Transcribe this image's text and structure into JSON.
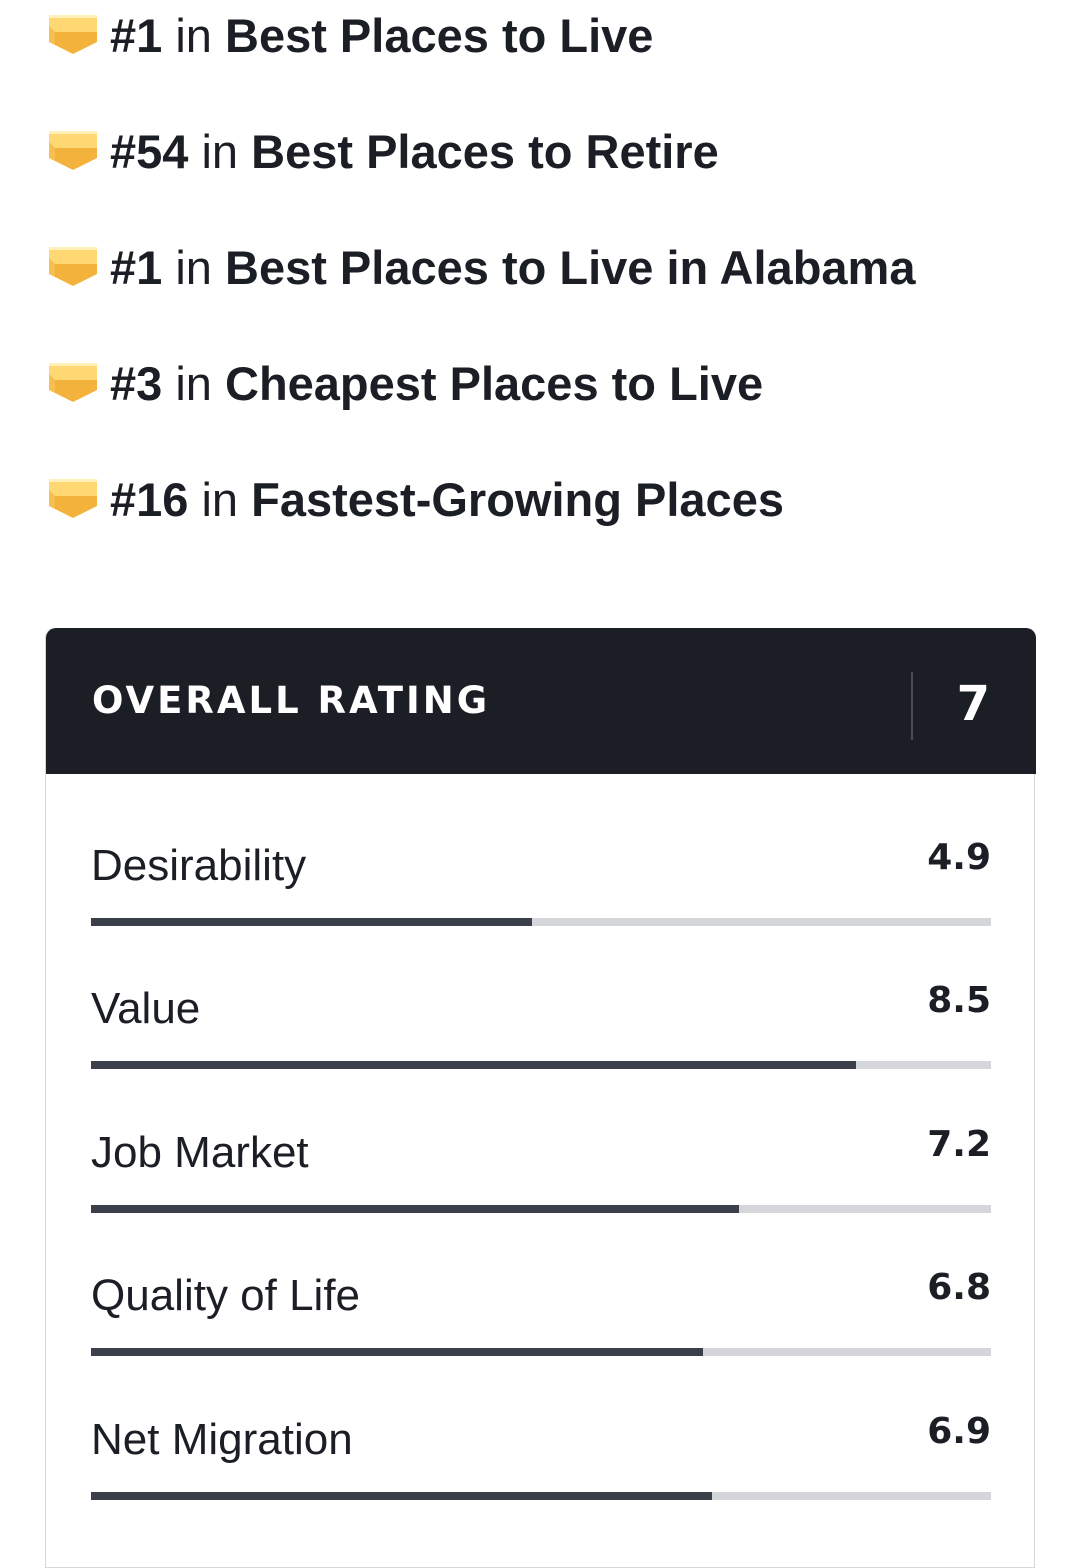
{
  "rankings": [
    {
      "rank": "#1",
      "connector": "in",
      "list": "Best Places to Live",
      "icon": "badge-icon"
    },
    {
      "rank": "#54",
      "connector": "in",
      "list": "Best Places to Retire",
      "icon": "badge-icon"
    },
    {
      "rank": "#1",
      "connector": "in",
      "list": "Best Places to Live in Alabama",
      "icon": "badge-icon"
    },
    {
      "rank": "#3",
      "connector": "in",
      "list": "Cheapest Places to Live",
      "icon": "badge-icon"
    },
    {
      "rank": "#16",
      "connector": "in",
      "list": "Fastest-Growing Places",
      "icon": "badge-icon"
    }
  ],
  "rating": {
    "title": "OVERALL RATING",
    "score": "7",
    "max_score": 10,
    "metrics": [
      {
        "label": "Desirability",
        "value": "4.9",
        "fraction": 0.49
      },
      {
        "label": "Value",
        "value": "8.5",
        "fraction": 0.85
      },
      {
        "label": "Job Market",
        "value": "7.2",
        "fraction": 0.72
      },
      {
        "label": "Quality of Life",
        "value": "6.8",
        "fraction": 0.68
      },
      {
        "label": "Net Migration",
        "value": "6.9",
        "fraction": 0.69
      }
    ]
  },
  "colors": {
    "header_bg": "#1c1e26",
    "bar_fill": "#3a3f4a",
    "bar_track": "#d4d6da",
    "badge_main": "#fcc751",
    "badge_light": "#ffe28f",
    "badge_shadow": "#f0a830"
  }
}
